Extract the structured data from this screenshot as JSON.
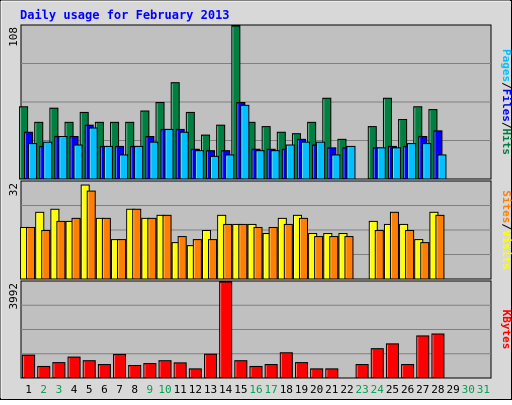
{
  "chart_data": {
    "type": "bar",
    "title": "Daily usage for February 2013",
    "days": [
      "1",
      "2",
      "3",
      "4",
      "5",
      "6",
      "7",
      "8",
      "9",
      "10",
      "11",
      "12",
      "13",
      "14",
      "15",
      "16",
      "17",
      "18",
      "19",
      "20",
      "21",
      "22",
      "23",
      "24",
      "25",
      "26",
      "27",
      "28",
      "29",
      "30",
      "31"
    ],
    "weekend_days": [
      "2",
      "3",
      "9",
      "10",
      "16",
      "17",
      "23",
      "24",
      "30",
      "31"
    ],
    "colors": {
      "hits": "#008040",
      "files": "#0000ff",
      "pages": "#00c0ff",
      "visits": "#ffff00",
      "sites": "#ff8000",
      "kbytes": "#ff0000",
      "title": "#0000ff",
      "plot_bg": "#c0c0c0",
      "frame_bg": "#d8d8d8",
      "weekday_label": "#000000",
      "weekend_label": "#00a050"
    },
    "panels": [
      {
        "ytick_label": "108",
        "ymax": 108,
        "axis_words": [
          {
            "text": "Pages",
            "key": "pages"
          },
          {
            "text": "Files",
            "key": "files"
          },
          {
            "text": "Hits",
            "key": "hits"
          }
        ],
        "separator": "/",
        "series": [
          {
            "key": "hits",
            "values": [
              51,
              40,
              50,
              40,
              47,
              40,
              40,
              40,
              48,
              54,
              68,
              47,
              31,
              38,
              108,
              40,
              37,
              33,
              32,
              40,
              57,
              28,
              null,
              37,
              57,
              42,
              51,
              49,
              null,
              null,
              null
            ]
          },
          {
            "key": "files",
            "values": [
              33,
              23,
              30,
              30,
              38,
              23,
              23,
              23,
              30,
              35,
              35,
              21,
              20,
              20,
              54,
              21,
              21,
              21,
              28,
              24,
              22,
              22,
              null,
              22,
              23,
              23,
              30,
              34,
              null,
              null,
              null
            ]
          },
          {
            "key": "pages",
            "values": [
              25,
              26,
              30,
              24,
              36,
              23,
              17,
              23,
              26,
              35,
              33,
              20,
              16,
              17,
              52,
              20,
              20,
              24,
              26,
              26,
              17,
              23,
              null,
              22,
              22,
              25,
              25,
              17,
              null,
              null,
              null
            ]
          }
        ]
      },
      {
        "ytick_label": "32",
        "ymax": 32,
        "axis_words": [
          {
            "text": "Sites",
            "key": "sites"
          },
          {
            "text": "Visits",
            "key": "visits"
          }
        ],
        "separator": "/",
        "series": [
          {
            "key": "visits",
            "values": [
              17,
              22,
              23,
              19,
              31,
              20,
              13,
              23,
              20,
              21,
              12,
              11,
              16,
              21,
              18,
              18,
              15,
              20,
              21,
              15,
              15,
              15,
              null,
              19,
              18,
              18,
              13,
              22,
              null,
              null,
              null
            ]
          },
          {
            "key": "sites",
            "values": [
              17,
              16,
              19,
              20,
              29,
              20,
              13,
              23,
              20,
              21,
              14,
              13,
              13,
              18,
              18,
              17,
              17,
              18,
              20,
              14,
              14,
              14,
              null,
              16,
              22,
              16,
              12,
              21,
              null,
              null,
              null
            ]
          }
        ]
      },
      {
        "ytick_label": "3992",
        "ymax": 3992,
        "axis_words": [
          {
            "text": "KBytes",
            "key": "kbytes"
          }
        ],
        "separator": "",
        "series": [
          {
            "key": "kbytes",
            "values": [
              950,
              480,
              640,
              870,
              720,
              560,
              980,
              520,
              600,
              720,
              630,
              380,
              990,
              3992,
              720,
              480,
              560,
              1050,
              640,
              380,
              380,
              null,
              560,
              1220,
              1420,
              560,
              1750,
              1830,
              null,
              null,
              null
            ]
          }
        ]
      }
    ]
  }
}
